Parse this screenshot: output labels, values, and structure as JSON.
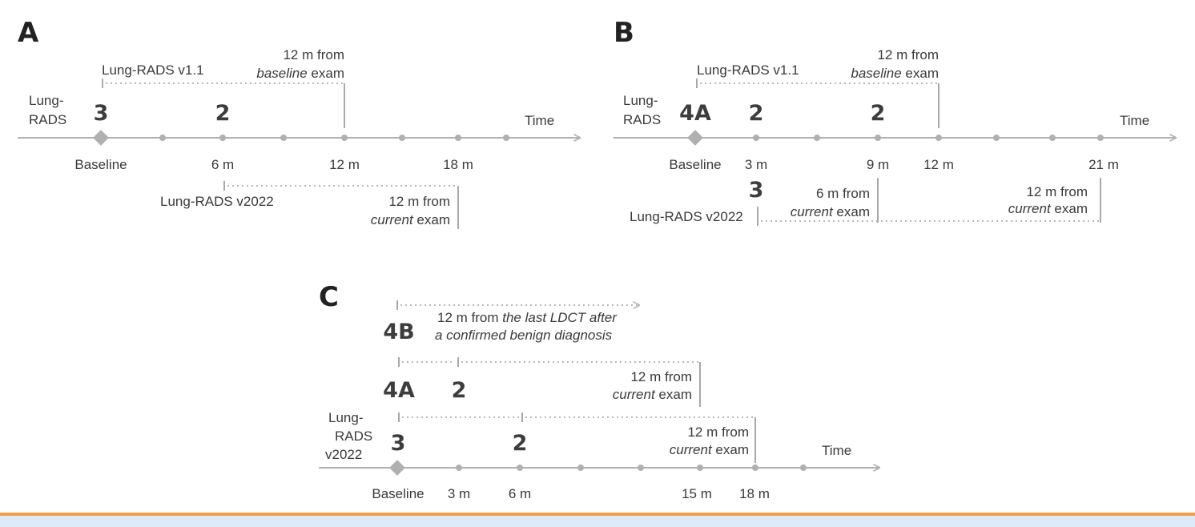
{
  "panels": {
    "A": {
      "letter": "A",
      "lung_rads_label": [
        "Lung-",
        "RADS"
      ],
      "time_label": "Time",
      "v11_label": "Lung-RADS v1.1",
      "v11_note": {
        "line1": "12 m from",
        "em": "baseline",
        "rest": " exam"
      },
      "v2022_label": "Lung-RADS v2022",
      "v2022_note": {
        "line1": "12 m from",
        "em": "current",
        "rest": " exam"
      },
      "categories": [
        "3",
        "2"
      ],
      "ticks": [
        "Baseline",
        "6 m",
        "12 m",
        "18 m"
      ]
    },
    "B": {
      "letter": "B",
      "lung_rads_label": [
        "Lung-",
        "RADS"
      ],
      "time_label": "Time",
      "v11_label": "Lung-RADS v1.1",
      "v11_note": {
        "line1": "12 m from",
        "em": "baseline",
        "rest": " exam"
      },
      "v2022_label": "Lung-RADS v2022",
      "v2022_cat": "3",
      "note_6m": {
        "line1": "6 m from",
        "em": "current",
        "rest": " exam"
      },
      "note_12m": {
        "line1": "12 m from",
        "em": "current",
        "rest": " exam"
      },
      "categories": [
        "4A",
        "2",
        "2"
      ],
      "ticks": [
        "Baseline",
        "3 m",
        "9 m",
        "12 m",
        "21 m"
      ]
    },
    "C": {
      "letter": "C",
      "lung_rads_label": [
        "Lung-",
        "RADS",
        "v2022"
      ],
      "time_label": "Time",
      "cat_4b": "4B",
      "note_4b": {
        "pre": "12 m from ",
        "em1": "the last LDCT after",
        "em2": "a confirmed benign diagnosis"
      },
      "cat_4a": "4A",
      "cat_4a_2": "2",
      "note_4a": {
        "line1": "12 m from",
        "em": "current",
        "rest": " exam"
      },
      "cat_3": "3",
      "cat_3_2": "2",
      "note_3": {
        "line1": "12 m from",
        "em": "current",
        "rest": " exam"
      },
      "ticks": [
        "Baseline",
        "3 m",
        "6 m",
        "15 m",
        "18 m"
      ]
    }
  }
}
